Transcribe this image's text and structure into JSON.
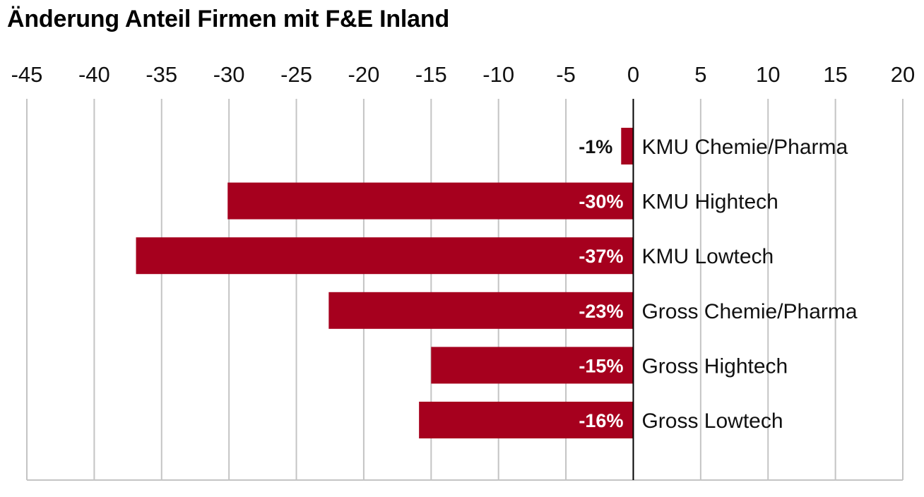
{
  "chart_data": {
    "type": "bar",
    "orientation": "horizontal",
    "title": "Änderung Anteil Firmen mit F&E Inland",
    "xlabel": "",
    "ylabel": "",
    "xlim": [
      -45,
      20
    ],
    "xticks": [
      -45,
      -40,
      -35,
      -30,
      -25,
      -20,
      -15,
      -10,
      -5,
      0,
      5,
      10,
      15,
      20
    ],
    "x_tick_labels": [
      "-45",
      "-40",
      "-35",
      "-30",
      "-25",
      "-20",
      "-15",
      "-10",
      "-5",
      "0",
      "5",
      "10",
      "15",
      "20"
    ],
    "grid": true,
    "categories": [
      "KMU Chemie/Pharma",
      "KMU Hightech",
      "KMU Lowtech",
      "Gross Chemie/Pharma",
      "Gross Hightech",
      "Gross Lowtech"
    ],
    "values": [
      -0.9,
      -30.1,
      -36.9,
      -22.6,
      -15.0,
      -15.9
    ],
    "data_labels": [
      "-1%",
      "-30%",
      "-37%",
      "-23%",
      "-15%",
      "-16%"
    ],
    "bar_color": "#a6001e"
  }
}
